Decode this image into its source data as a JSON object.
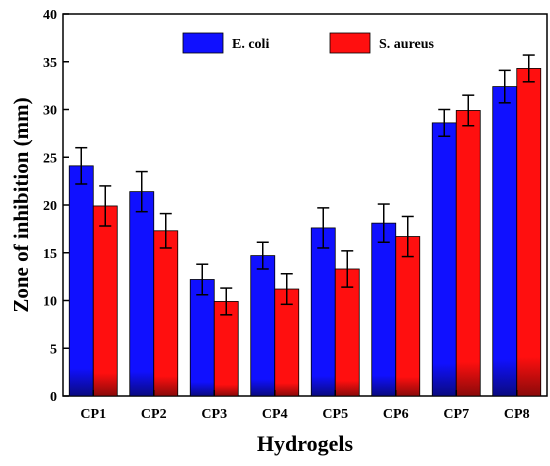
{
  "chart_data": {
    "type": "bar",
    "title": "",
    "xlabel": "Hydrogels",
    "ylabel": "Zone of inhibition (mm)",
    "ylim": [
      0,
      40
    ],
    "yticks": [
      0,
      5,
      10,
      15,
      20,
      25,
      30,
      35,
      40
    ],
    "categories": [
      "CP1",
      "CP2",
      "CP3",
      "CP4",
      "CP5",
      "CP6",
      "CP7",
      "CP8"
    ],
    "legend_position": "top",
    "grid": false,
    "series": [
      {
        "name": "E. coli",
        "color": "#1010ff",
        "shade": "#0a0a80",
        "values": [
          24.1,
          21.4,
          12.2,
          14.7,
          17.6,
          18.1,
          28.6,
          32.4
        ],
        "errors": [
          1.9,
          2.1,
          1.6,
          1.4,
          2.1,
          2.0,
          1.4,
          1.7
        ]
      },
      {
        "name": "S. aureus",
        "color": "#ff0f0f",
        "shade": "#8a0a0a",
        "values": [
          19.9,
          17.3,
          9.9,
          11.2,
          13.3,
          16.7,
          29.9,
          34.3
        ],
        "errors": [
          2.1,
          1.8,
          1.4,
          1.6,
          1.9,
          2.1,
          1.6,
          1.4
        ]
      }
    ]
  }
}
